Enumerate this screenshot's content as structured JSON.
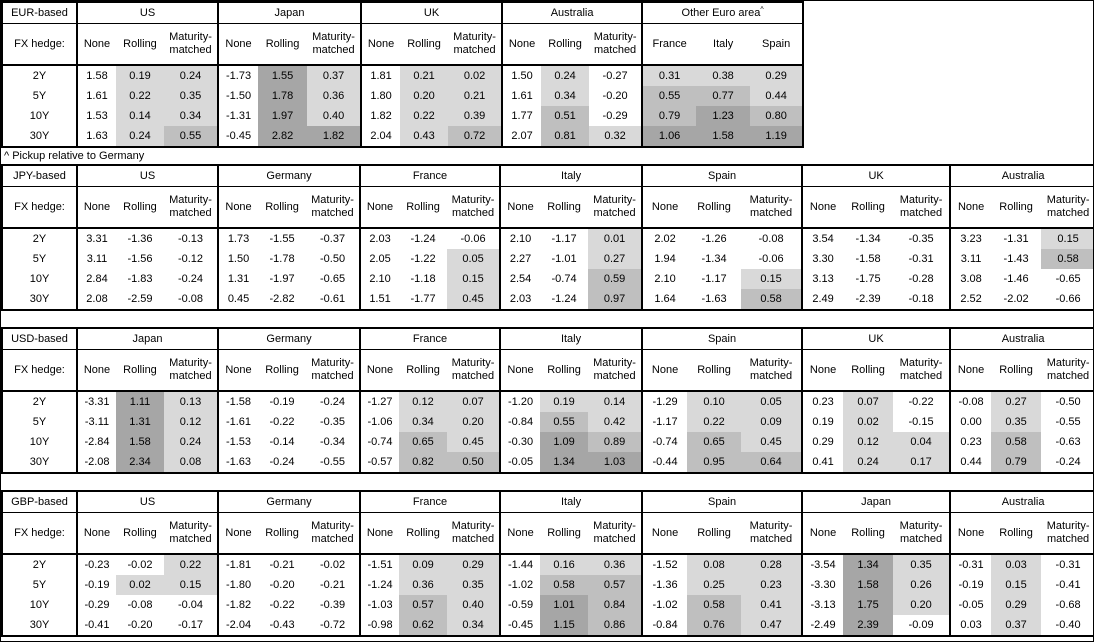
{
  "labels": {
    "fx_hedge": "FX hedge:",
    "hedge_columns": [
      "None",
      "Rolling",
      "Maturity-matched"
    ]
  },
  "footnote": "^ Pickup relative to Germany",
  "shading": {
    "applies_to": "Rolling and Maturity-matched columns, and all Other-Euro-area columns",
    "levels": [
      {
        "min": 1.0,
        "color": "#a6a6a6"
      },
      {
        "min": 0.5,
        "color": "#bfbfbf"
      },
      {
        "min": 0.0,
        "color": "#d9d9d9"
      }
    ],
    "negative_color": "#ffffff"
  },
  "chart_data": {
    "type": "table",
    "subtype": "heatmap-table",
    "row_labels": [
      "2Y",
      "5Y",
      "10Y",
      "30Y"
    ],
    "hedge_columns": [
      "None",
      "Rolling",
      "Maturity-matched"
    ],
    "tables": [
      {
        "base": "EUR-based",
        "groups": [
          {
            "name": "US",
            "rows": [
              [
                "1.58",
                "0.19",
                "0.24"
              ],
              [
                "1.61",
                "0.22",
                "0.35"
              ],
              [
                "1.53",
                "0.14",
                "0.34"
              ],
              [
                "1.63",
                "0.24",
                "0.55"
              ]
            ]
          },
          {
            "name": "Japan",
            "rows": [
              [
                "-1.73",
                "1.55",
                "0.37"
              ],
              [
                "-1.50",
                "1.78",
                "0.36"
              ],
              [
                "-1.31",
                "1.97",
                "0.40"
              ],
              [
                "-0.45",
                "2.82",
                "1.82"
              ]
            ]
          },
          {
            "name": "UK",
            "rows": [
              [
                "1.81",
                "0.21",
                "0.02"
              ],
              [
                "1.80",
                "0.20",
                "0.21"
              ],
              [
                "1.82",
                "0.22",
                "0.39"
              ],
              [
                "2.04",
                "0.43",
                "0.72"
              ]
            ]
          },
          {
            "name": "Australia",
            "rows": [
              [
                "1.50",
                "0.24",
                "-0.27"
              ],
              [
                "1.61",
                "0.34",
                "-0.20"
              ],
              [
                "1.77",
                "0.51",
                "-0.29"
              ],
              [
                "2.07",
                "0.81",
                "0.32"
              ]
            ]
          },
          {
            "name": "Other Euro area",
            "sup": "^",
            "columns": [
              "France",
              "Italy",
              "Spain"
            ],
            "rows": [
              [
                "0.31",
                "0.38",
                "0.29"
              ],
              [
                "0.55",
                "0.77",
                "0.44"
              ],
              [
                "0.79",
                "1.23",
                "0.80"
              ],
              [
                "1.06",
                "1.58",
                "1.19"
              ]
            ]
          }
        ]
      },
      {
        "base": "JPY-based",
        "groups": [
          {
            "name": "US",
            "rows": [
              [
                "3.31",
                "-1.36",
                "-0.13"
              ],
              [
                "3.11",
                "-1.56",
                "-0.12"
              ],
              [
                "2.84",
                "-1.83",
                "-0.24"
              ],
              [
                "2.08",
                "-2.59",
                "-0.08"
              ]
            ]
          },
          {
            "name": "Germany",
            "rows": [
              [
                "1.73",
                "-1.55",
                "-0.37"
              ],
              [
                "1.50",
                "-1.78",
                "-0.50"
              ],
              [
                "1.31",
                "-1.97",
                "-0.65"
              ],
              [
                "0.45",
                "-2.82",
                "-0.61"
              ]
            ]
          },
          {
            "name": "France",
            "rows": [
              [
                "2.03",
                "-1.24",
                "-0.06"
              ],
              [
                "2.05",
                "-1.22",
                "0.05"
              ],
              [
                "2.10",
                "-1.18",
                "0.15"
              ],
              [
                "1.51",
                "-1.77",
                "0.45"
              ]
            ]
          },
          {
            "name": "Italy",
            "rows": [
              [
                "2.10",
                "-1.17",
                "0.01"
              ],
              [
                "2.27",
                "-1.01",
                "0.27"
              ],
              [
                "2.54",
                "-0.74",
                "0.59"
              ],
              [
                "2.03",
                "-1.24",
                "0.97"
              ]
            ]
          },
          {
            "name": "Spain",
            "rows": [
              [
                "2.02",
                "-1.26",
                "-0.08"
              ],
              [
                "1.94",
                "-1.34",
                "-0.06"
              ],
              [
                "2.10",
                "-1.17",
                "0.15"
              ],
              [
                "1.64",
                "-1.63",
                "0.58"
              ]
            ]
          },
          {
            "name": "UK",
            "rows": [
              [
                "3.54",
                "-1.34",
                "-0.35"
              ],
              [
                "3.30",
                "-1.58",
                "-0.31"
              ],
              [
                "3.13",
                "-1.75",
                "-0.28"
              ],
              [
                "2.49",
                "-2.39",
                "-0.18"
              ]
            ]
          },
          {
            "name": "Australia",
            "rows": [
              [
                "3.23",
                "-1.31",
                "0.15"
              ],
              [
                "3.11",
                "-1.43",
                "0.58"
              ],
              [
                "3.08",
                "-1.46",
                "-0.65"
              ],
              [
                "2.52",
                "-2.02",
                "-0.66"
              ]
            ]
          }
        ]
      },
      {
        "base": "USD-based",
        "groups": [
          {
            "name": "Japan",
            "rows": [
              [
                "-3.31",
                "1.11",
                "0.13"
              ],
              [
                "-3.11",
                "1.31",
                "0.12"
              ],
              [
                "-2.84",
                "1.58",
                "0.24"
              ],
              [
                "-2.08",
                "2.34",
                "0.08"
              ]
            ]
          },
          {
            "name": "Germany",
            "rows": [
              [
                "-1.58",
                "-0.19",
                "-0.24"
              ],
              [
                "-1.61",
                "-0.22",
                "-0.35"
              ],
              [
                "-1.53",
                "-0.14",
                "-0.34"
              ],
              [
                "-1.63",
                "-0.24",
                "-0.55"
              ]
            ]
          },
          {
            "name": "France",
            "rows": [
              [
                "-1.27",
                "0.12",
                "0.07"
              ],
              [
                "-1.06",
                "0.34",
                "0.20"
              ],
              [
                "-0.74",
                "0.65",
                "0.45"
              ],
              [
                "-0.57",
                "0.82",
                "0.50"
              ]
            ]
          },
          {
            "name": "Italy",
            "rows": [
              [
                "-1.20",
                "0.19",
                "0.14"
              ],
              [
                "-0.84",
                "0.55",
                "0.42"
              ],
              [
                "-0.30",
                "1.09",
                "0.89"
              ],
              [
                "-0.05",
                "1.34",
                "1.03"
              ]
            ]
          },
          {
            "name": "Spain",
            "rows": [
              [
                "-1.29",
                "0.10",
                "0.05"
              ],
              [
                "-1.17",
                "0.22",
                "0.09"
              ],
              [
                "-0.74",
                "0.65",
                "0.45"
              ],
              [
                "-0.44",
                "0.95",
                "0.64"
              ]
            ]
          },
          {
            "name": "UK",
            "rows": [
              [
                "0.23",
                "0.07",
                "-0.22"
              ],
              [
                "0.19",
                "0.02",
                "-0.15"
              ],
              [
                "0.29",
                "0.12",
                "0.04"
              ],
              [
                "0.41",
                "0.24",
                "0.17"
              ]
            ]
          },
          {
            "name": "Australia",
            "rows": [
              [
                "-0.08",
                "0.27",
                "-0.50"
              ],
              [
                "0.00",
                "0.35",
                "-0.55"
              ],
              [
                "0.23",
                "0.58",
                "-0.63"
              ],
              [
                "0.44",
                "0.79",
                "-0.24"
              ]
            ]
          }
        ]
      },
      {
        "base": "GBP-based",
        "groups": [
          {
            "name": "US",
            "rows": [
              [
                "-0.23",
                "-0.02",
                "0.22"
              ],
              [
                "-0.19",
                "0.02",
                "0.15"
              ],
              [
                "-0.29",
                "-0.08",
                "-0.04"
              ],
              [
                "-0.41",
                "-0.20",
                "-0.17"
              ]
            ]
          },
          {
            "name": "Germany",
            "rows": [
              [
                "-1.81",
                "-0.21",
                "-0.02"
              ],
              [
                "-1.80",
                "-0.20",
                "-0.21"
              ],
              [
                "-1.82",
                "-0.22",
                "-0.39"
              ],
              [
                "-2.04",
                "-0.43",
                "-0.72"
              ]
            ]
          },
          {
            "name": "France",
            "rows": [
              [
                "-1.51",
                "0.09",
                "0.29"
              ],
              [
                "-1.24",
                "0.36",
                "0.35"
              ],
              [
                "-1.03",
                "0.57",
                "0.40"
              ],
              [
                "-0.98",
                "0.62",
                "0.34"
              ]
            ]
          },
          {
            "name": "Italy",
            "rows": [
              [
                "-1.44",
                "0.16",
                "0.36"
              ],
              [
                "-1.02",
                "0.58",
                "0.57"
              ],
              [
                "-0.59",
                "1.01",
                "0.84"
              ],
              [
                "-0.45",
                "1.15",
                "0.86"
              ]
            ]
          },
          {
            "name": "Spain",
            "rows": [
              [
                "-1.52",
                "0.08",
                "0.28"
              ],
              [
                "-1.36",
                "0.25",
                "0.23"
              ],
              [
                "-1.02",
                "0.58",
                "0.41"
              ],
              [
                "-0.84",
                "0.76",
                "0.47"
              ]
            ]
          },
          {
            "name": "Japan",
            "rows": [
              [
                "-3.54",
                "1.34",
                "0.35"
              ],
              [
                "-3.30",
                "1.58",
                "0.26"
              ],
              [
                "-3.13",
                "1.75",
                "0.20"
              ],
              [
                "-2.49",
                "2.39",
                "-0.09"
              ]
            ]
          },
          {
            "name": "Australia",
            "rows": [
              [
                "-0.31",
                "0.03",
                "-0.31"
              ],
              [
                "-0.19",
                "0.15",
                "-0.41"
              ],
              [
                "-0.05",
                "0.29",
                "-0.68"
              ],
              [
                "0.03",
                "0.37",
                "-0.40"
              ]
            ]
          }
        ]
      }
    ]
  }
}
